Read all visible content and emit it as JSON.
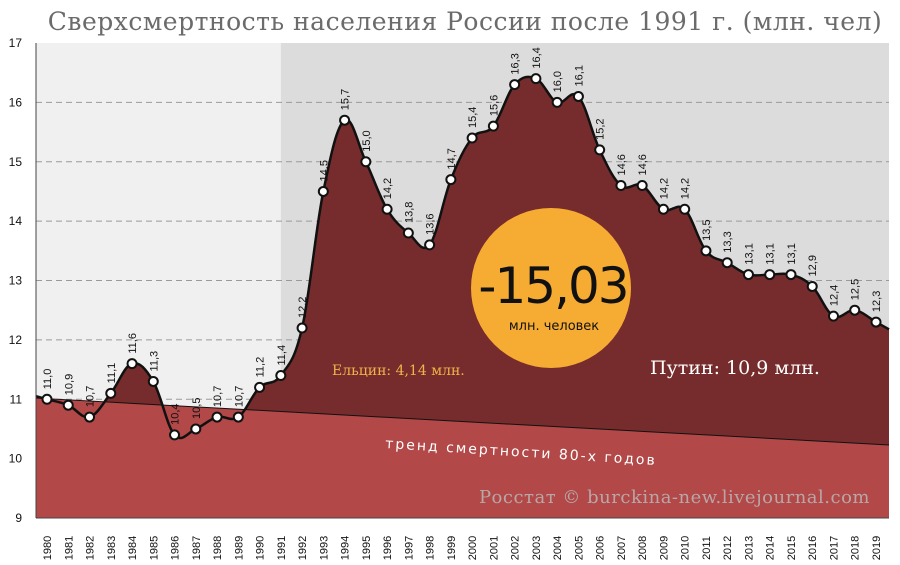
{
  "chart_data": {
    "type": "area",
    "title": "Сверхсмертность населения России после 1991 г. (млн. чел)",
    "ylim": [
      9,
      17
    ],
    "yticks": [
      9,
      10,
      11,
      12,
      13,
      14,
      15,
      16,
      17
    ],
    "grid": "horizontal-dashed",
    "x": [
      "1980",
      "1981",
      "1982",
      "1983",
      "1984",
      "1985",
      "1986",
      "1987",
      "1988",
      "1989",
      "1990",
      "1991",
      "1992",
      "1993",
      "1994",
      "1995",
      "1996",
      "1997",
      "1998",
      "1999",
      "2000",
      "2001",
      "2002",
      "2003",
      "2004",
      "2005",
      "2006",
      "2007",
      "2008",
      "2009",
      "2010",
      "2011",
      "2012",
      "2013",
      "2014",
      "2015",
      "2016",
      "2017",
      "2018",
      "2019"
    ],
    "series": [
      {
        "values": [
          11.0,
          10.9,
          10.7,
          11.1,
          11.6,
          11.3,
          10.4,
          10.5,
          10.7,
          10.7,
          11.2,
          11.4,
          12.2,
          14.5,
          15.7,
          15.0,
          14.2,
          13.8,
          13.6,
          14.7,
          15.4,
          15.6,
          16.3,
          16.4,
          16.0,
          16.1,
          15.2,
          14.6,
          14.6,
          14.2,
          14.2,
          13.5,
          13.3,
          13.1,
          13.1,
          13.1,
          12.9,
          12.4,
          12.5,
          12.3
        ],
        "labels": [
          "11,0",
          "10,9",
          "10,7",
          "11,1",
          "11,6",
          "11,3",
          "10,4",
          "10,5",
          "10,7",
          "10,7",
          "11,2",
          "11,4",
          "12,2",
          "14,5",
          "15,7",
          "15,0",
          "14,2",
          "13,8",
          "13,6",
          "14,7",
          "15,4",
          "15,6",
          "16,3",
          "16,4",
          "16,0",
          "16,1",
          "15,2",
          "14,6",
          "14,6",
          "14,2",
          "14,2",
          "13,5",
          "13,3",
          "13,1",
          "13,1",
          "13,1",
          "12,9",
          "12,4",
          "12,5",
          "12,3"
        ]
      }
    ],
    "trend": {
      "name": "тренд смертности 80-х годов",
      "start": 11.02,
      "end": 10.23
    },
    "annotations": {
      "highlight_value": "-15,03",
      "highlight_unit": "млн. человек",
      "yeltsin": "Ельцин: 4,14 млн.",
      "putin": "Путин: 10,9 млн.",
      "source": "Росстат © burckina-new.livejournal.com"
    },
    "colors": {
      "excess_area": "#762c2c",
      "base_area": "#b24848",
      "bg_before": "#f0f0f0",
      "bg_after": "#dcdcdc",
      "highlight_circle": "#f6ab33",
      "yeltsin_text": "#f0b24a"
    }
  }
}
